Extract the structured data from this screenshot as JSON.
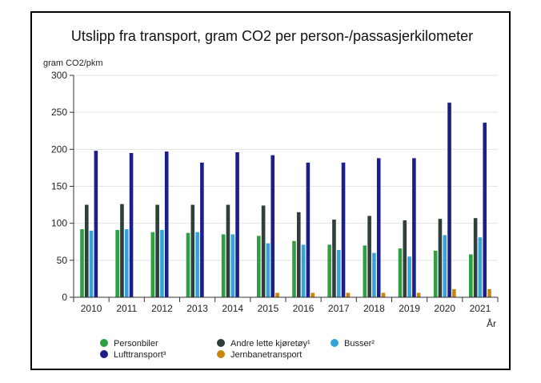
{
  "chart_data": {
    "type": "bar",
    "title": "Utslipp fra transport, gram CO2 per person-/passasjerkilometer",
    "ylabel": "gram CO2/pkm",
    "xlabel": "År",
    "ylim": [
      0,
      300
    ],
    "yticks": [
      0,
      50,
      100,
      150,
      200,
      250,
      300
    ],
    "grid": true,
    "legend_position": "bottom",
    "categories": [
      "2010",
      "2011",
      "2012",
      "2013",
      "2014",
      "2015",
      "2016",
      "2017",
      "2018",
      "2019",
      "2020",
      "2021"
    ],
    "series": [
      {
        "name": "Personbiler",
        "color": "#2ea043",
        "values": [
          92,
          91,
          88,
          87,
          85,
          83,
          76,
          71,
          70,
          66,
          63,
          58
        ]
      },
      {
        "name": "Andre lette kjøretøy¹",
        "color": "#2f3f3a",
        "values": [
          125,
          126,
          125,
          125,
          125,
          124,
          115,
          105,
          110,
          104,
          106,
          107
        ]
      },
      {
        "name": "Busser²",
        "color": "#35a3dc",
        "values": [
          90,
          92,
          91,
          88,
          85,
          73,
          71,
          64,
          60,
          55,
          84,
          81
        ]
      },
      {
        "name": "Lufttransport³",
        "color": "#1c1f8a",
        "values": [
          198,
          195,
          197,
          182,
          196,
          192,
          182,
          182,
          188,
          188,
          263,
          236
        ]
      },
      {
        "name": "Jernbanetransport",
        "color": "#c9850c",
        "values": [
          0,
          0,
          0,
          0,
          0,
          6,
          6,
          6,
          6,
          6,
          11,
          11
        ]
      }
    ],
    "legend_rows": [
      [
        "Personbiler",
        "Andre lette kjøretøy¹",
        "Busser²"
      ],
      [
        "Lufttransport³",
        "Jernbanetransport"
      ]
    ]
  }
}
